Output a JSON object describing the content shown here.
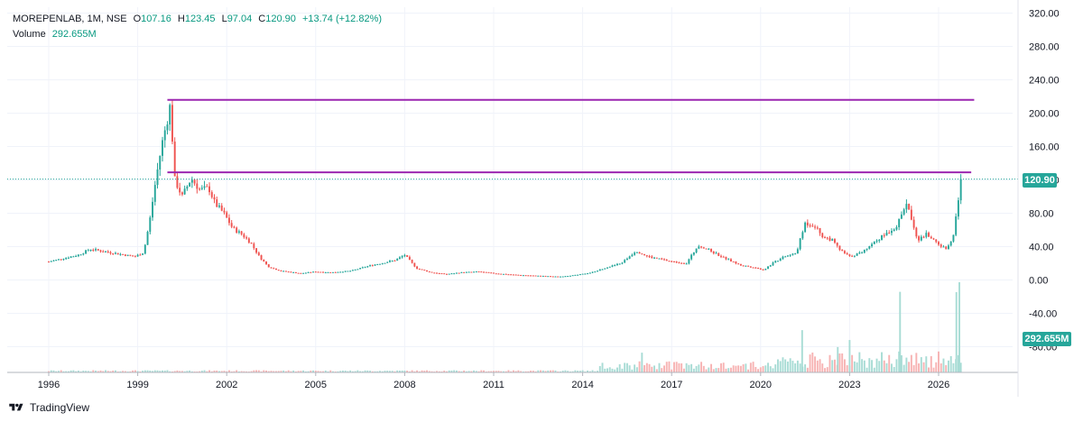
{
  "legend": {
    "symbol": "MOREPENLAB, 1M, NSE",
    "open_label": "O",
    "open": "107.16",
    "high_label": "H",
    "high": "123.45",
    "low_label": "L",
    "low": "97.04",
    "close_label": "C",
    "close": "120.90",
    "change": "+13.74 (+12.82%)",
    "volume_label": "Volume",
    "volume": "292.655M"
  },
  "price_badge": "120.90",
  "volume_badge": "292.655M",
  "footer": {
    "brand": "TradingView"
  },
  "colors": {
    "up": "#26a69a",
    "down": "#ef5350",
    "level": "#9c27b0",
    "axis_text": "#131722",
    "grid": "#f0f3fa"
  },
  "chart_data": {
    "type": "candlestick",
    "interval": "1M",
    "y_ticks": [
      "320.00",
      "280.00",
      "240.00",
      "200.00",
      "160.00",
      "120.00",
      "80.00",
      "40.00",
      "0.00",
      "-40.00",
      "-80.00"
    ],
    "ylim": [
      -112,
      330
    ],
    "x_ticks": [
      "1996",
      "1999",
      "2002",
      "2005",
      "2008",
      "2011",
      "2014",
      "2017",
      "2020",
      "2023",
      "2026"
    ],
    "xlim": [
      1995.5,
      2027.9
    ],
    "last_close": 120.9,
    "horizontal_levels": [
      {
        "value": 216,
        "from": 2000.0,
        "to": 2027.2
      },
      {
        "value": 129,
        "from": 2000.0,
        "to": 2027.1
      }
    ],
    "close_anchors": [
      [
        1996.0,
        22
      ],
      [
        1996.5,
        26
      ],
      [
        1997.0,
        30
      ],
      [
        1997.4,
        37
      ],
      [
        1997.9,
        34
      ],
      [
        1998.4,
        31
      ],
      [
        1998.9,
        28
      ],
      [
        1999.2,
        33
      ],
      [
        1999.4,
        70
      ],
      [
        1999.6,
        118
      ],
      [
        1999.8,
        160
      ],
      [
        2000.1,
        210
      ],
      [
        2000.25,
        120
      ],
      [
        2000.5,
        100
      ],
      [
        2000.8,
        122
      ],
      [
        2001.1,
        108
      ],
      [
        2001.4,
        110
      ],
      [
        2001.6,
        92
      ],
      [
        2001.9,
        80
      ],
      [
        2002.2,
        62
      ],
      [
        2002.5,
        55
      ],
      [
        2002.8,
        45
      ],
      [
        2003.1,
        28
      ],
      [
        2003.4,
        16
      ],
      [
        2003.8,
        11
      ],
      [
        2004.5,
        8
      ],
      [
        2005.0,
        10
      ],
      [
        2005.5,
        9
      ],
      [
        2006.2,
        11
      ],
      [
        2006.8,
        17
      ],
      [
        2007.2,
        20
      ],
      [
        2007.7,
        24
      ],
      [
        2008.0,
        30
      ],
      [
        2008.4,
        14
      ],
      [
        2008.9,
        9
      ],
      [
        2009.4,
        7
      ],
      [
        2009.9,
        9
      ],
      [
        2010.5,
        10
      ],
      [
        2011.0,
        8
      ],
      [
        2011.8,
        6
      ],
      [
        2012.5,
        5
      ],
      [
        2013.2,
        4
      ],
      [
        2013.8,
        6
      ],
      [
        2014.3,
        9
      ],
      [
        2014.8,
        15
      ],
      [
        2015.3,
        20
      ],
      [
        2015.8,
        35
      ],
      [
        2016.2,
        28
      ],
      [
        2016.6,
        25
      ],
      [
        2017.0,
        22
      ],
      [
        2017.5,
        20
      ],
      [
        2017.9,
        42
      ],
      [
        2018.3,
        35
      ],
      [
        2018.8,
        26
      ],
      [
        2019.3,
        18
      ],
      [
        2019.8,
        15
      ],
      [
        2020.1,
        12
      ],
      [
        2020.4,
        20
      ],
      [
        2020.8,
        28
      ],
      [
        2021.2,
        32
      ],
      [
        2021.5,
        68
      ],
      [
        2021.8,
        66
      ],
      [
        2022.1,
        52
      ],
      [
        2022.4,
        48
      ],
      [
        2022.7,
        35
      ],
      [
        2023.0,
        28
      ],
      [
        2023.4,
        33
      ],
      [
        2023.8,
        45
      ],
      [
        2024.2,
        55
      ],
      [
        2024.6,
        65
      ],
      [
        2024.9,
        92
      ],
      [
        2025.1,
        72
      ],
      [
        2025.3,
        48
      ],
      [
        2025.6,
        55
      ],
      [
        2025.9,
        46
      ],
      [
        2026.1,
        40
      ],
      [
        2026.3,
        37
      ],
      [
        2026.5,
        56
      ],
      [
        2026.7,
        107
      ],
      [
        2026.75,
        120.9
      ]
    ],
    "volume_scale_max_M": 320,
    "volume_spikes_M": [
      [
        2021.4,
        150
      ],
      [
        2023.0,
        115
      ],
      [
        2024.7,
        286
      ],
      [
        2026.6,
        285
      ],
      [
        2026.7,
        340
      ],
      [
        2022.6,
        90
      ],
      [
        2016.0,
        70
      ]
    ]
  }
}
